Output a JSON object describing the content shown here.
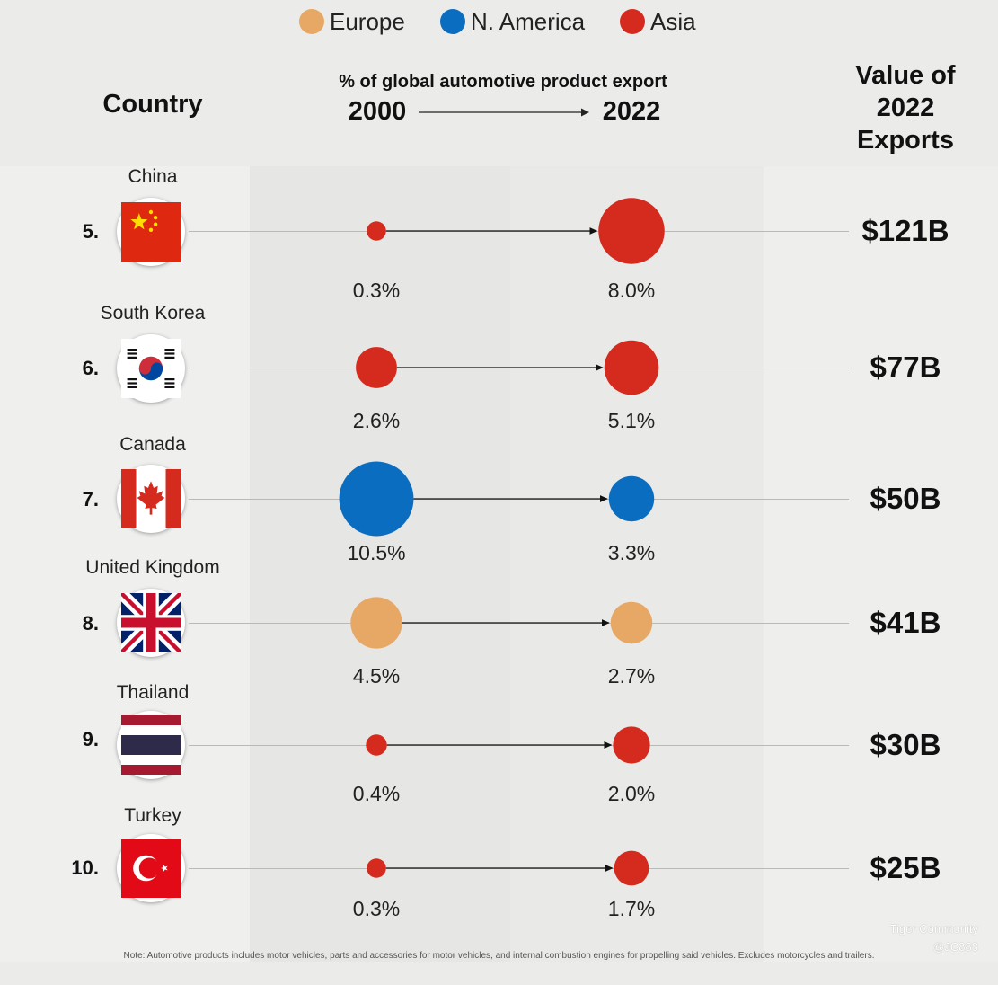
{
  "legend": [
    {
      "label": "Europe",
      "color": "#e8a865"
    },
    {
      "label": "N. America",
      "color": "#0b6dc0"
    },
    {
      "label": "Asia",
      "color": "#d52b1e"
    }
  ],
  "headers": {
    "country": "Country",
    "metric": "% of global automotive product export",
    "from_year": "2000",
    "to_year": "2022",
    "value_line1": "Value of",
    "value_line2": "2022",
    "value_line3": "Exports"
  },
  "chart_data": {
    "type": "dumbbell",
    "title": "% of global automotive product export, 2000 → 2022",
    "value_unit": "%",
    "series": [
      {
        "name": "2000",
        "values": [
          0.3,
          2.6,
          10.5,
          4.5,
          0.4,
          0.3
        ]
      },
      {
        "name": "2022",
        "values": [
          8.0,
          5.1,
          3.3,
          2.7,
          2.0,
          1.7
        ]
      }
    ],
    "rows": [
      {
        "rank": "5.",
        "country": "China",
        "flag": "china-flag-icon",
        "region": "Asia",
        "pct_2000": 0.3,
        "pct_2022": 8.0,
        "label_2000": "0.3%",
        "label_2022": "8.0%",
        "value_2022": "$121B"
      },
      {
        "rank": "6.",
        "country": "South Korea",
        "flag": "south-korea-flag-icon",
        "region": "Asia",
        "pct_2000": 2.6,
        "pct_2022": 5.1,
        "label_2000": "2.6%",
        "label_2022": "5.1%",
        "value_2022": "$77B"
      },
      {
        "rank": "7.",
        "country": "Canada",
        "flag": "canada-flag-icon",
        "region": "N. America",
        "pct_2000": 10.5,
        "pct_2022": 3.3,
        "label_2000": "10.5%",
        "label_2022": "3.3%",
        "value_2022": "$50B"
      },
      {
        "rank": "8.",
        "country": "United Kingdom",
        "flag": "uk-flag-icon",
        "region": "Europe",
        "pct_2000": 4.5,
        "pct_2022": 2.7,
        "label_2000": "4.5%",
        "label_2022": "2.7%",
        "value_2022": "$41B"
      },
      {
        "rank": "9.",
        "country": "Thailand",
        "flag": "thailand-flag-icon",
        "region": "Asia",
        "pct_2000": 0.4,
        "pct_2022": 2.0,
        "label_2000": "0.4%",
        "label_2022": "2.0%",
        "value_2022": "$30B"
      },
      {
        "rank": "10.",
        "country": "Turkey",
        "flag": "turkey-flag-icon",
        "region": "Asia",
        "pct_2000": 0.3,
        "pct_2022": 1.7,
        "label_2000": "0.3%",
        "label_2022": "1.7%",
        "value_2022": "$25B"
      }
    ]
  },
  "note": "Note: Automotive products includes motor vehicles, parts and accessories for motor vehicles, and internal combustion engines for propelling said vehicles. Excludes motorcycles and trailers.",
  "watermark": {
    "line1": "Tiger Community",
    "line2": "@JC888"
  }
}
